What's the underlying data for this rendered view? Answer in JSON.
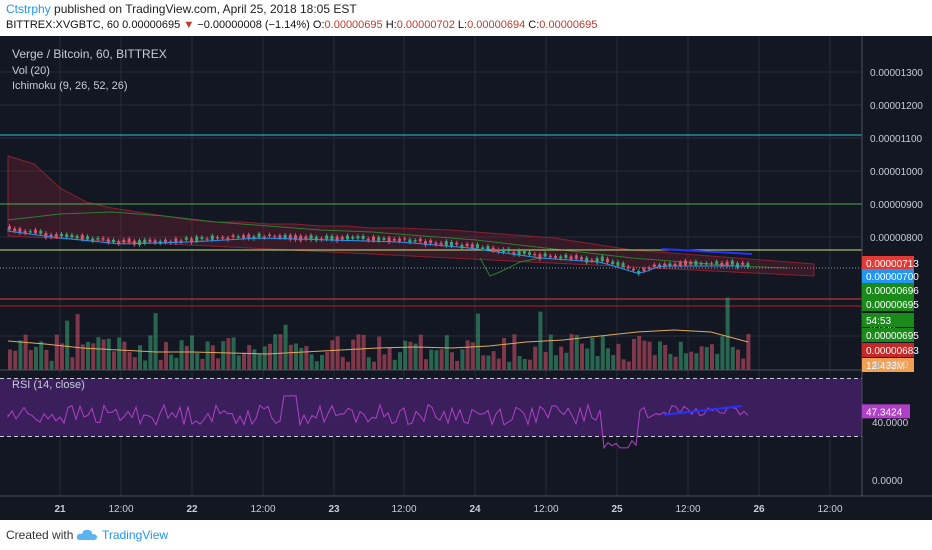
{
  "header": {
    "author": "Ctstrphy",
    "published_text": "published on TradingView.com, April 25, 2018 18:05 EST",
    "symbol": "BITTREX:XVGBTC, 60",
    "last": "0.00000695",
    "change": "−0.00000008 (−1.14%)",
    "open_label": "O:",
    "open": "0.00000695",
    "high_label": "H:",
    "high": "0.00000702",
    "low_label": "L:",
    "low": "0.00000694",
    "close_label": "C:",
    "close": "0.00000695"
  },
  "legend": {
    "title": "Verge / Bitcoin, 60, BITTREX",
    "vol": "Vol (20)",
    "ichimoku": "Ichimoku (9, 26, 52, 26)",
    "rsi": "RSI (14, close)"
  },
  "price_axis": {
    "ticks": [
      "0.00001300",
      "0.00001200",
      "0.00001100",
      "0.00001000",
      "0.00000900",
      "0.00000800"
    ],
    "tick_values": [
      1.3e-05,
      1.2e-05,
      1.1e-05,
      1e-05,
      9e-06,
      8e-06
    ]
  },
  "price_tags": [
    {
      "text": "0.00000713",
      "value": 7.13e-06,
      "bg": "#e53935"
    },
    {
      "text": "0.00000700",
      "value": 7e-06,
      "bg": "#2196f3"
    },
    {
      "text": "0.00000696",
      "value": 6.96e-06,
      "bg": "#1b8a1b"
    },
    {
      "text": "0.00000695",
      "value": 6.95e-06,
      "bg": "#1b8a1b"
    }
  ],
  "volume_tags": [
    {
      "text": "54:53",
      "bg": "#1b8a1b"
    },
    {
      "text": "0.00000695",
      "bg": "#1b8a1b"
    },
    {
      "text": "0.00000683",
      "bg": "#c62828"
    },
    {
      "text": "12.433M",
      "bg": "#f0a050"
    }
  ],
  "volume_partial_tick": "0.000",
  "rsi_axis": {
    "ticks": [
      "80.0000",
      "40.0000",
      "0.0000"
    ],
    "current": "47.3424"
  },
  "time_axis": [
    "21",
    "12:00",
    "22",
    "12:00",
    "23",
    "12:00",
    "24",
    "12:00",
    "25",
    "12:00",
    "26",
    "12:00"
  ],
  "footer": {
    "created": "Created with",
    "brand": "TradingView"
  },
  "colors": {
    "background": "#131722",
    "grid": "#262b38",
    "up": "#3aa876",
    "down": "#d9536a",
    "rsi_line": "#b040c8",
    "rsi_band": "#3a1f5c",
    "hline_green": "#4caf50",
    "hline_cyan": "#26c6da",
    "hline_red": "#e53935",
    "trend_blue": "#2233ff"
  },
  "chart_data": {
    "type": "candlestick",
    "horizontal_lines": [
      1.091e-05,
      8.87e-06,
      7.44e-06,
      7e-06
    ],
    "price_series_approx": [
      {
        "x": "21 00:00",
        "close": 8.2e-06
      },
      {
        "x": "21 12:00",
        "close": 7.8e-06
      },
      {
        "x": "22 00:00",
        "close": 7.75e-06
      },
      {
        "x": "22 12:00",
        "close": 7.9e-06
      },
      {
        "x": "23 00:00",
        "close": 7.8e-06
      },
      {
        "x": "23 12:00",
        "close": 7.7e-06
      },
      {
        "x": "24 00:00",
        "close": 7.5e-06
      },
      {
        "x": "24 12:00",
        "close": 7.3e-06
      },
      {
        "x": "25 00:00",
        "close": 7e-06
      },
      {
        "x": "25 12:00",
        "close": 7.05e-06
      },
      {
        "x": "25 18:00",
        "close": 6.95e-06
      }
    ],
    "rsi_levels": [
      80,
      40,
      0
    ],
    "rsi_bands": [
      70,
      30
    ],
    "rsi_current": 47.3424
  }
}
